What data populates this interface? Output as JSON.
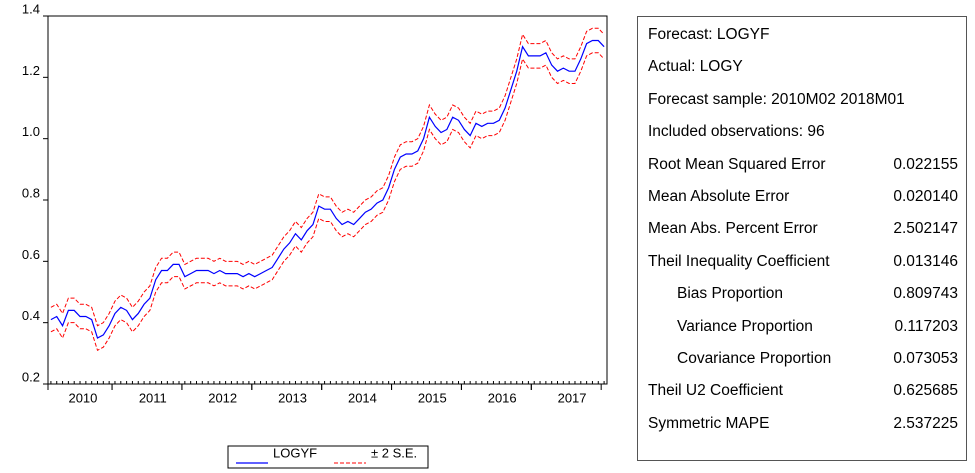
{
  "chart_data": {
    "type": "line",
    "categories": [
      null,
      null,
      null,
      null,
      null,
      "2010",
      null,
      null,
      null,
      null,
      null,
      null,
      null,
      null,
      null,
      null,
      null,
      "2011",
      null,
      null,
      null,
      null,
      null,
      null,
      null,
      null,
      null,
      null,
      null,
      "2012",
      null,
      null,
      null,
      null,
      null,
      null,
      null,
      null,
      null,
      null,
      null,
      "2013",
      null,
      null,
      null,
      null,
      null,
      null,
      null,
      null,
      null,
      null,
      null,
      "2014",
      null,
      null,
      null,
      null,
      null,
      null,
      null,
      null,
      null,
      null,
      null,
      "2015",
      null,
      null,
      null,
      null,
      null,
      null,
      null,
      null,
      null,
      null,
      null,
      "2016",
      null,
      null,
      null,
      null,
      null,
      null,
      null,
      null,
      null,
      null,
      null,
      "2017",
      null,
      null,
      null,
      null,
      null,
      null
    ],
    "series": [
      {
        "name": "LOGYF",
        "color": "#0000ff",
        "values": [
          0.41,
          0.42,
          0.39,
          0.44,
          0.44,
          0.42,
          0.42,
          0.41,
          0.35,
          0.36,
          0.39,
          0.43,
          0.45,
          0.44,
          0.41,
          0.43,
          0.46,
          0.48,
          0.54,
          0.57,
          0.57,
          0.59,
          0.59,
          0.55,
          0.56,
          0.57,
          0.57,
          0.57,
          0.56,
          0.57,
          0.56,
          0.56,
          0.56,
          0.55,
          0.56,
          0.55,
          0.56,
          0.57,
          0.58,
          0.61,
          0.64,
          0.66,
          0.69,
          0.67,
          0.7,
          0.72,
          0.78,
          0.77,
          0.77,
          0.74,
          0.72,
          0.73,
          0.72,
          0.74,
          0.76,
          0.77,
          0.79,
          0.8,
          0.84,
          0.9,
          0.94,
          0.95,
          0.95,
          0.96,
          1.0,
          1.07,
          1.04,
          1.02,
          1.03,
          1.07,
          1.06,
          1.03,
          1.01,
          1.05,
          1.04,
          1.05,
          1.05,
          1.06,
          1.1,
          1.16,
          1.22,
          1.3,
          1.27,
          1.27,
          1.27,
          1.28,
          1.24,
          1.22,
          1.23,
          1.22,
          1.22,
          1.26,
          1.31,
          1.32,
          1.32,
          1.3
        ]
      }
    ],
    "band": {
      "name": "± 2 S.E.",
      "color": "#ff0000",
      "upper": [
        0.45,
        0.46,
        0.43,
        0.48,
        0.48,
        0.46,
        0.46,
        0.45,
        0.39,
        0.4,
        0.43,
        0.47,
        0.49,
        0.48,
        0.45,
        0.47,
        0.5,
        0.52,
        0.58,
        0.61,
        0.61,
        0.63,
        0.63,
        0.59,
        0.6,
        0.61,
        0.61,
        0.61,
        0.6,
        0.61,
        0.6,
        0.6,
        0.6,
        0.59,
        0.6,
        0.59,
        0.6,
        0.61,
        0.62,
        0.65,
        0.68,
        0.7,
        0.73,
        0.71,
        0.74,
        0.76,
        0.82,
        0.81,
        0.81,
        0.78,
        0.76,
        0.77,
        0.76,
        0.78,
        0.8,
        0.81,
        0.83,
        0.84,
        0.88,
        0.94,
        0.98,
        0.99,
        0.99,
        1.0,
        1.04,
        1.11,
        1.08,
        1.06,
        1.07,
        1.11,
        1.1,
        1.07,
        1.05,
        1.09,
        1.08,
        1.09,
        1.09,
        1.1,
        1.14,
        1.2,
        1.26,
        1.34,
        1.31,
        1.31,
        1.31,
        1.32,
        1.28,
        1.26,
        1.27,
        1.26,
        1.26,
        1.3,
        1.35,
        1.36,
        1.36,
        1.34
      ],
      "lower": [
        0.37,
        0.38,
        0.35,
        0.4,
        0.4,
        0.38,
        0.38,
        0.37,
        0.31,
        0.32,
        0.35,
        0.39,
        0.41,
        0.4,
        0.37,
        0.39,
        0.42,
        0.44,
        0.5,
        0.53,
        0.53,
        0.55,
        0.55,
        0.51,
        0.52,
        0.53,
        0.53,
        0.53,
        0.52,
        0.53,
        0.52,
        0.52,
        0.52,
        0.51,
        0.52,
        0.51,
        0.52,
        0.53,
        0.54,
        0.57,
        0.6,
        0.62,
        0.65,
        0.63,
        0.66,
        0.68,
        0.74,
        0.73,
        0.73,
        0.7,
        0.68,
        0.69,
        0.68,
        0.7,
        0.72,
        0.73,
        0.75,
        0.76,
        0.8,
        0.86,
        0.9,
        0.91,
        0.91,
        0.92,
        0.96,
        1.03,
        1.0,
        0.98,
        0.99,
        1.03,
        1.02,
        0.99,
        0.97,
        1.01,
        1.0,
        1.01,
        1.01,
        1.02,
        1.06,
        1.12,
        1.18,
        1.26,
        1.23,
        1.23,
        1.23,
        1.24,
        1.2,
        1.18,
        1.19,
        1.18,
        1.18,
        1.22,
        1.27,
        1.28,
        1.28,
        1.26
      ]
    },
    "ylim": [
      0.2,
      1.4
    ],
    "yticks": [
      0.2,
      0.4,
      0.6,
      0.8,
      {
        "value": 1,
        "label": "1.0"
      },
      1.2,
      1.4
    ],
    "grid": false
  },
  "stats": {
    "rows": [
      {
        "label": "Forecast: LOGYF"
      },
      {
        "label": "Actual: LOGY"
      },
      {
        "label": "Forecast sample: 2010M02 2018M01"
      },
      {
        "label": "Included observations: 96"
      },
      {
        "label": "Root Mean Squared Error",
        "value": "0.022155"
      },
      {
        "label": "Mean Absolute Error",
        "value": "0.020140"
      },
      {
        "label": "Mean Abs. Percent Error",
        "value": "2.502147"
      },
      {
        "label": "Theil Inequality Coefficient",
        "value": "0.013146"
      },
      {
        "label": "Bias Proportion",
        "value": "0.809743",
        "indent": true
      },
      {
        "label": "Variance Proportion",
        "value": "0.117203",
        "indent": true
      },
      {
        "label": "Covariance Proportion",
        "value": "0.073053",
        "indent": true
      },
      {
        "label": "Theil U2 Coefficient",
        "value": "0.625685"
      },
      {
        "label": "Symmetric MAPE",
        "value": "2.537225"
      }
    ]
  }
}
